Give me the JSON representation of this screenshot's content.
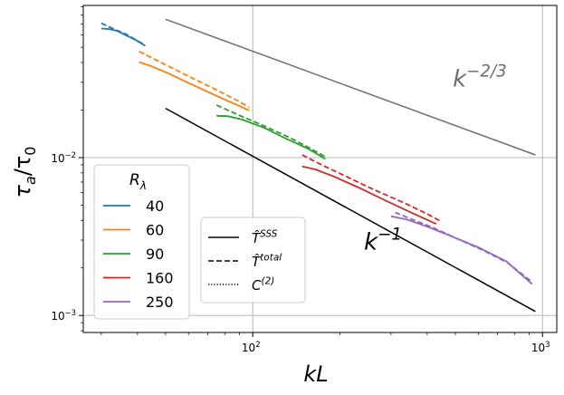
{
  "chart_data": {
    "type": "line",
    "xlabel": "kL",
    "ylabel": "τa/τ0",
    "xscale": "log",
    "yscale": "log",
    "xlim": [
      26,
      1120
    ],
    "ylim": [
      0.00078,
      0.092
    ],
    "x_ticks": [
      {
        "value": 100,
        "base": "10",
        "exp": "2"
      },
      {
        "value": 1000,
        "base": "10",
        "exp": "3"
      }
    ],
    "y_ticks": [
      {
        "value": 0.01,
        "base": "10",
        "exp": "−2"
      },
      {
        "value": 0.001,
        "base": "10",
        "exp": "−3"
      }
    ],
    "grid": true,
    "legend_re": {
      "title": "Rλ",
      "placement": "center-left",
      "entries": [
        "40",
        "60",
        "90",
        "160",
        "250"
      ]
    },
    "legend_styles": {
      "placement": "bottom-center",
      "entries": [
        {
          "base": "T̂",
          "sup": "SSS",
          "dash": "solid"
        },
        {
          "base": "T̂",
          "sup": "total",
          "dash": "dashed"
        },
        {
          "base": "C",
          "sup": "(2)",
          "dash": "dotted"
        }
      ]
    },
    "reference_lines": [
      {
        "slope": "k−1",
        "base": "k",
        "sup": "−1",
        "color": "#000000",
        "points": [
          [
            50,
            0.0205
          ],
          [
            945,
            0.00106
          ]
        ]
      },
      {
        "slope": "k−2/3",
        "base": "k",
        "sup": "−2/3",
        "color": "#6e6e6e",
        "points": [
          [
            50,
            0.0752
          ],
          [
            945,
            0.0104
          ]
        ]
      }
    ],
    "series": [
      {
        "name": "40",
        "color": "#1f77b4",
        "solid": [
          [
            30,
            0.0657
          ],
          [
            32,
            0.0652
          ],
          [
            34,
            0.0635
          ],
          [
            36.5,
            0.0595
          ],
          [
            39.5,
            0.0555
          ],
          [
            42.5,
            0.051
          ]
        ],
        "dashed": [
          [
            30,
            0.071
          ],
          [
            33,
            0.0655
          ],
          [
            36.5,
            0.0605
          ],
          [
            42.5,
            0.0515
          ]
        ]
      },
      {
        "name": "60",
        "color": "#ff7f0e",
        "solid": [
          [
            40.5,
            0.0403
          ],
          [
            44,
            0.0383
          ],
          [
            50,
            0.0348
          ],
          [
            60,
            0.0297
          ],
          [
            75,
            0.0246
          ],
          [
            90,
            0.0212
          ],
          [
            97,
            0.0199
          ]
        ],
        "dashed": [
          [
            40.5,
            0.047
          ],
          [
            50,
            0.0387
          ],
          [
            62,
            0.0318
          ],
          [
            75,
            0.0268
          ],
          [
            90,
            0.0226
          ],
          [
            97,
            0.0208
          ]
        ]
      },
      {
        "name": "90",
        "color": "#2ca02c",
        "solid": [
          [
            75,
            0.0184
          ],
          [
            82,
            0.0183
          ],
          [
            92,
            0.0174
          ],
          [
            110,
            0.0154
          ],
          [
            130,
            0.0132
          ],
          [
            155,
            0.0114
          ],
          [
            178,
            0.0098
          ]
        ],
        "dashed": [
          [
            75,
            0.0215
          ],
          [
            90,
            0.0185
          ],
          [
            110,
            0.0158
          ],
          [
            135,
            0.0133
          ],
          [
            160,
            0.0113
          ],
          [
            178,
            0.0101
          ]
        ]
      },
      {
        "name": "160",
        "color": "#d62728",
        "solid": [
          [
            148,
            0.0088
          ],
          [
            165,
            0.0084
          ],
          [
            190,
            0.0076
          ],
          [
            230,
            0.0065
          ],
          [
            290,
            0.0053
          ],
          [
            360,
            0.0044
          ],
          [
            430,
            0.0038
          ]
        ],
        "dashed": [
          [
            148,
            0.0104
          ],
          [
            175,
            0.0089
          ],
          [
            210,
            0.0076
          ],
          [
            260,
            0.0063
          ],
          [
            330,
            0.0052
          ],
          [
            400,
            0.0044
          ],
          [
            440,
            0.004
          ]
        ]
      },
      {
        "name": "250",
        "color": "#9467bd",
        "solid": [
          [
            300,
            0.00425
          ],
          [
            340,
            0.00405
          ],
          [
            400,
            0.00365
          ],
          [
            480,
            0.0032
          ],
          [
            600,
            0.0027
          ],
          [
            750,
            0.0022
          ],
          [
            920,
            0.00158
          ]
        ],
        "dashed": [
          [
            310,
            0.0045
          ],
          [
            350,
            0.0041
          ],
          [
            420,
            0.0036
          ],
          [
            500,
            0.0031
          ],
          [
            620,
            0.0026
          ],
          [
            760,
            0.00215
          ],
          [
            920,
            0.00163
          ]
        ]
      }
    ]
  }
}
